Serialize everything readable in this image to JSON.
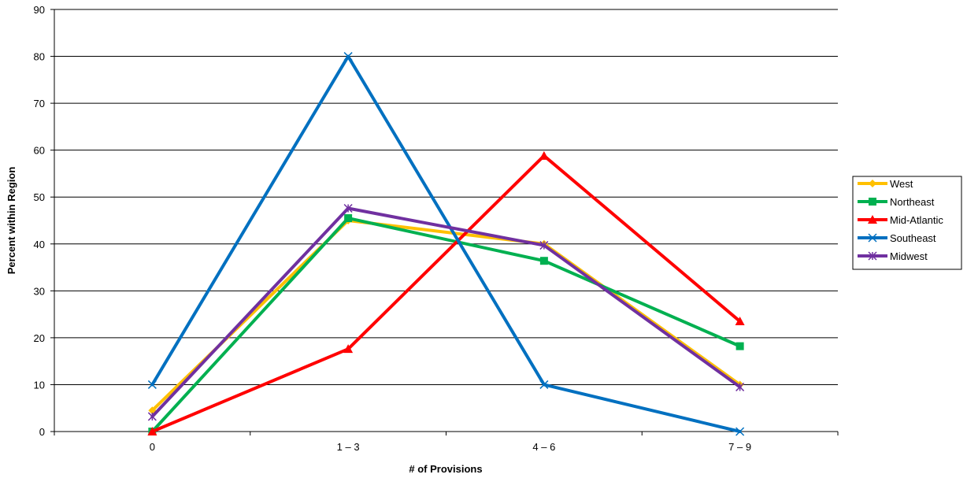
{
  "chart_data": {
    "type": "line",
    "categories": [
      "0",
      "1 – 3",
      "4 – 6",
      "7 – 9"
    ],
    "xlabel": "# of Provisions",
    "ylabel": "Percent within Region",
    "ylim": [
      0,
      90
    ],
    "yticks": [
      "0",
      "10",
      "20",
      "30",
      "40",
      "50",
      "60",
      "70",
      "80",
      "90"
    ],
    "grid": true,
    "legend_position": "right",
    "series": [
      {
        "name": "West",
        "color": "#FFC000",
        "marker": "diamond",
        "values": [
          4.5,
          45,
          40,
          10
        ]
      },
      {
        "name": "Northeast",
        "color": "#00B050",
        "marker": "square",
        "values": [
          0,
          45.5,
          36.4,
          18.2
        ]
      },
      {
        "name": "Mid-Atlantic",
        "color": "#FF0000",
        "marker": "triangle",
        "values": [
          0,
          17.6,
          58.8,
          23.5
        ]
      },
      {
        "name": "Southeast",
        "color": "#0070C0",
        "marker": "x",
        "values": [
          10,
          80,
          10,
          0
        ]
      },
      {
        "name": "Midwest",
        "color": "#7030A0",
        "marker": "star",
        "values": [
          3.2,
          47.6,
          39.7,
          9.5
        ]
      }
    ]
  }
}
